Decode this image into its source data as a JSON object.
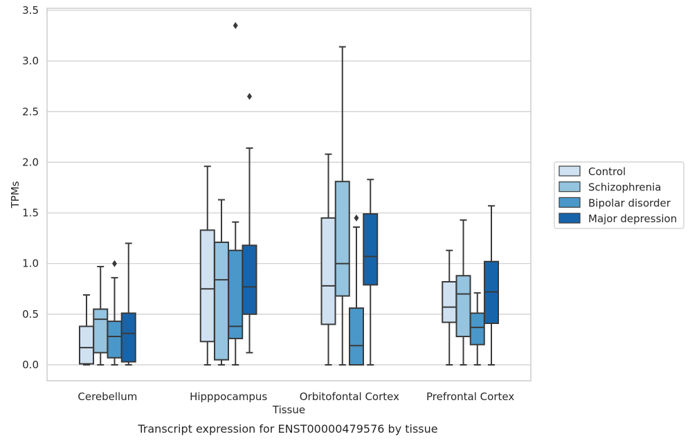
{
  "chart_data": {
    "type": "box",
    "title": "",
    "caption": "Transcript expression for ENST00000479576 by tissue",
    "xlabel": "Tissue",
    "ylabel": "TPMs",
    "ylim": [
      -0.15,
      3.55
    ],
    "yticks": [
      0.0,
      0.5,
      1.0,
      1.5,
      2.0,
      2.5,
      3.0,
      3.5
    ],
    "ytick_labels": [
      "0.0",
      "0.5",
      "1.0",
      "1.5",
      "2.0",
      "2.5",
      "3.0",
      "3.5"
    ],
    "grid": "horizontal",
    "legend_position": "right",
    "categories": [
      "Cerebellum",
      "Hipppocampus",
      "Orbitofontal Cortex",
      "Prefrontal Cortex"
    ],
    "series": [
      {
        "name": "Control",
        "color": "#d0e1f2",
        "boxes": [
          {
            "whislo": 0.0,
            "q1": 0.01,
            "med": 0.17,
            "q3": 0.38,
            "whishi": 0.69,
            "fliers": []
          },
          {
            "whislo": 0.0,
            "q1": 0.23,
            "med": 0.75,
            "q3": 1.33,
            "whishi": 1.96,
            "fliers": []
          },
          {
            "whislo": 0.0,
            "q1": 0.4,
            "med": 0.78,
            "q3": 1.45,
            "whishi": 2.08,
            "fliers": []
          },
          {
            "whislo": 0.0,
            "q1": 0.42,
            "med": 0.57,
            "q3": 0.82,
            "whishi": 1.13,
            "fliers": []
          }
        ]
      },
      {
        "name": "Schizophrenia",
        "color": "#94c4df",
        "boxes": [
          {
            "whislo": 0.0,
            "q1": 0.12,
            "med": 0.45,
            "q3": 0.55,
            "whishi": 0.97,
            "fliers": []
          },
          {
            "whislo": 0.0,
            "q1": 0.05,
            "med": 0.84,
            "q3": 1.21,
            "whishi": 1.63,
            "fliers": []
          },
          {
            "whislo": 0.0,
            "q1": 0.68,
            "med": 1.0,
            "q3": 1.81,
            "whishi": 3.14,
            "fliers": []
          },
          {
            "whislo": 0.0,
            "q1": 0.28,
            "med": 0.7,
            "q3": 0.88,
            "whishi": 1.43,
            "fliers": []
          }
        ]
      },
      {
        "name": "Bipolar disorder",
        "color": "#4a98c9",
        "boxes": [
          {
            "whislo": 0.0,
            "q1": 0.07,
            "med": 0.28,
            "q3": 0.43,
            "whishi": 0.86,
            "fliers": [
              1.0
            ]
          },
          {
            "whislo": 0.0,
            "q1": 0.26,
            "med": 0.38,
            "q3": 1.13,
            "whishi": 1.41,
            "fliers": [
              3.35
            ]
          },
          {
            "whislo": 0.0,
            "q1": 0.0,
            "med": 0.19,
            "q3": 0.56,
            "whishi": 1.36,
            "fliers": [
              1.45
            ]
          },
          {
            "whislo": 0.0,
            "q1": 0.2,
            "med": 0.37,
            "q3": 0.51,
            "whishi": 0.71,
            "fliers": []
          }
        ]
      },
      {
        "name": "Major depression",
        "color": "#1764ab",
        "boxes": [
          {
            "whislo": 0.0,
            "q1": 0.03,
            "med": 0.31,
            "q3": 0.51,
            "whishi": 1.2,
            "fliers": []
          },
          {
            "whislo": 0.12,
            "q1": 0.5,
            "med": 0.77,
            "q3": 1.18,
            "whishi": 2.14,
            "fliers": [
              2.65
            ]
          },
          {
            "whislo": 0.0,
            "q1": 0.79,
            "med": 1.07,
            "q3": 1.49,
            "whishi": 1.83,
            "fliers": []
          },
          {
            "whislo": 0.0,
            "q1": 0.41,
            "med": 0.72,
            "q3": 1.02,
            "whishi": 1.57,
            "fliers": []
          }
        ]
      }
    ]
  }
}
